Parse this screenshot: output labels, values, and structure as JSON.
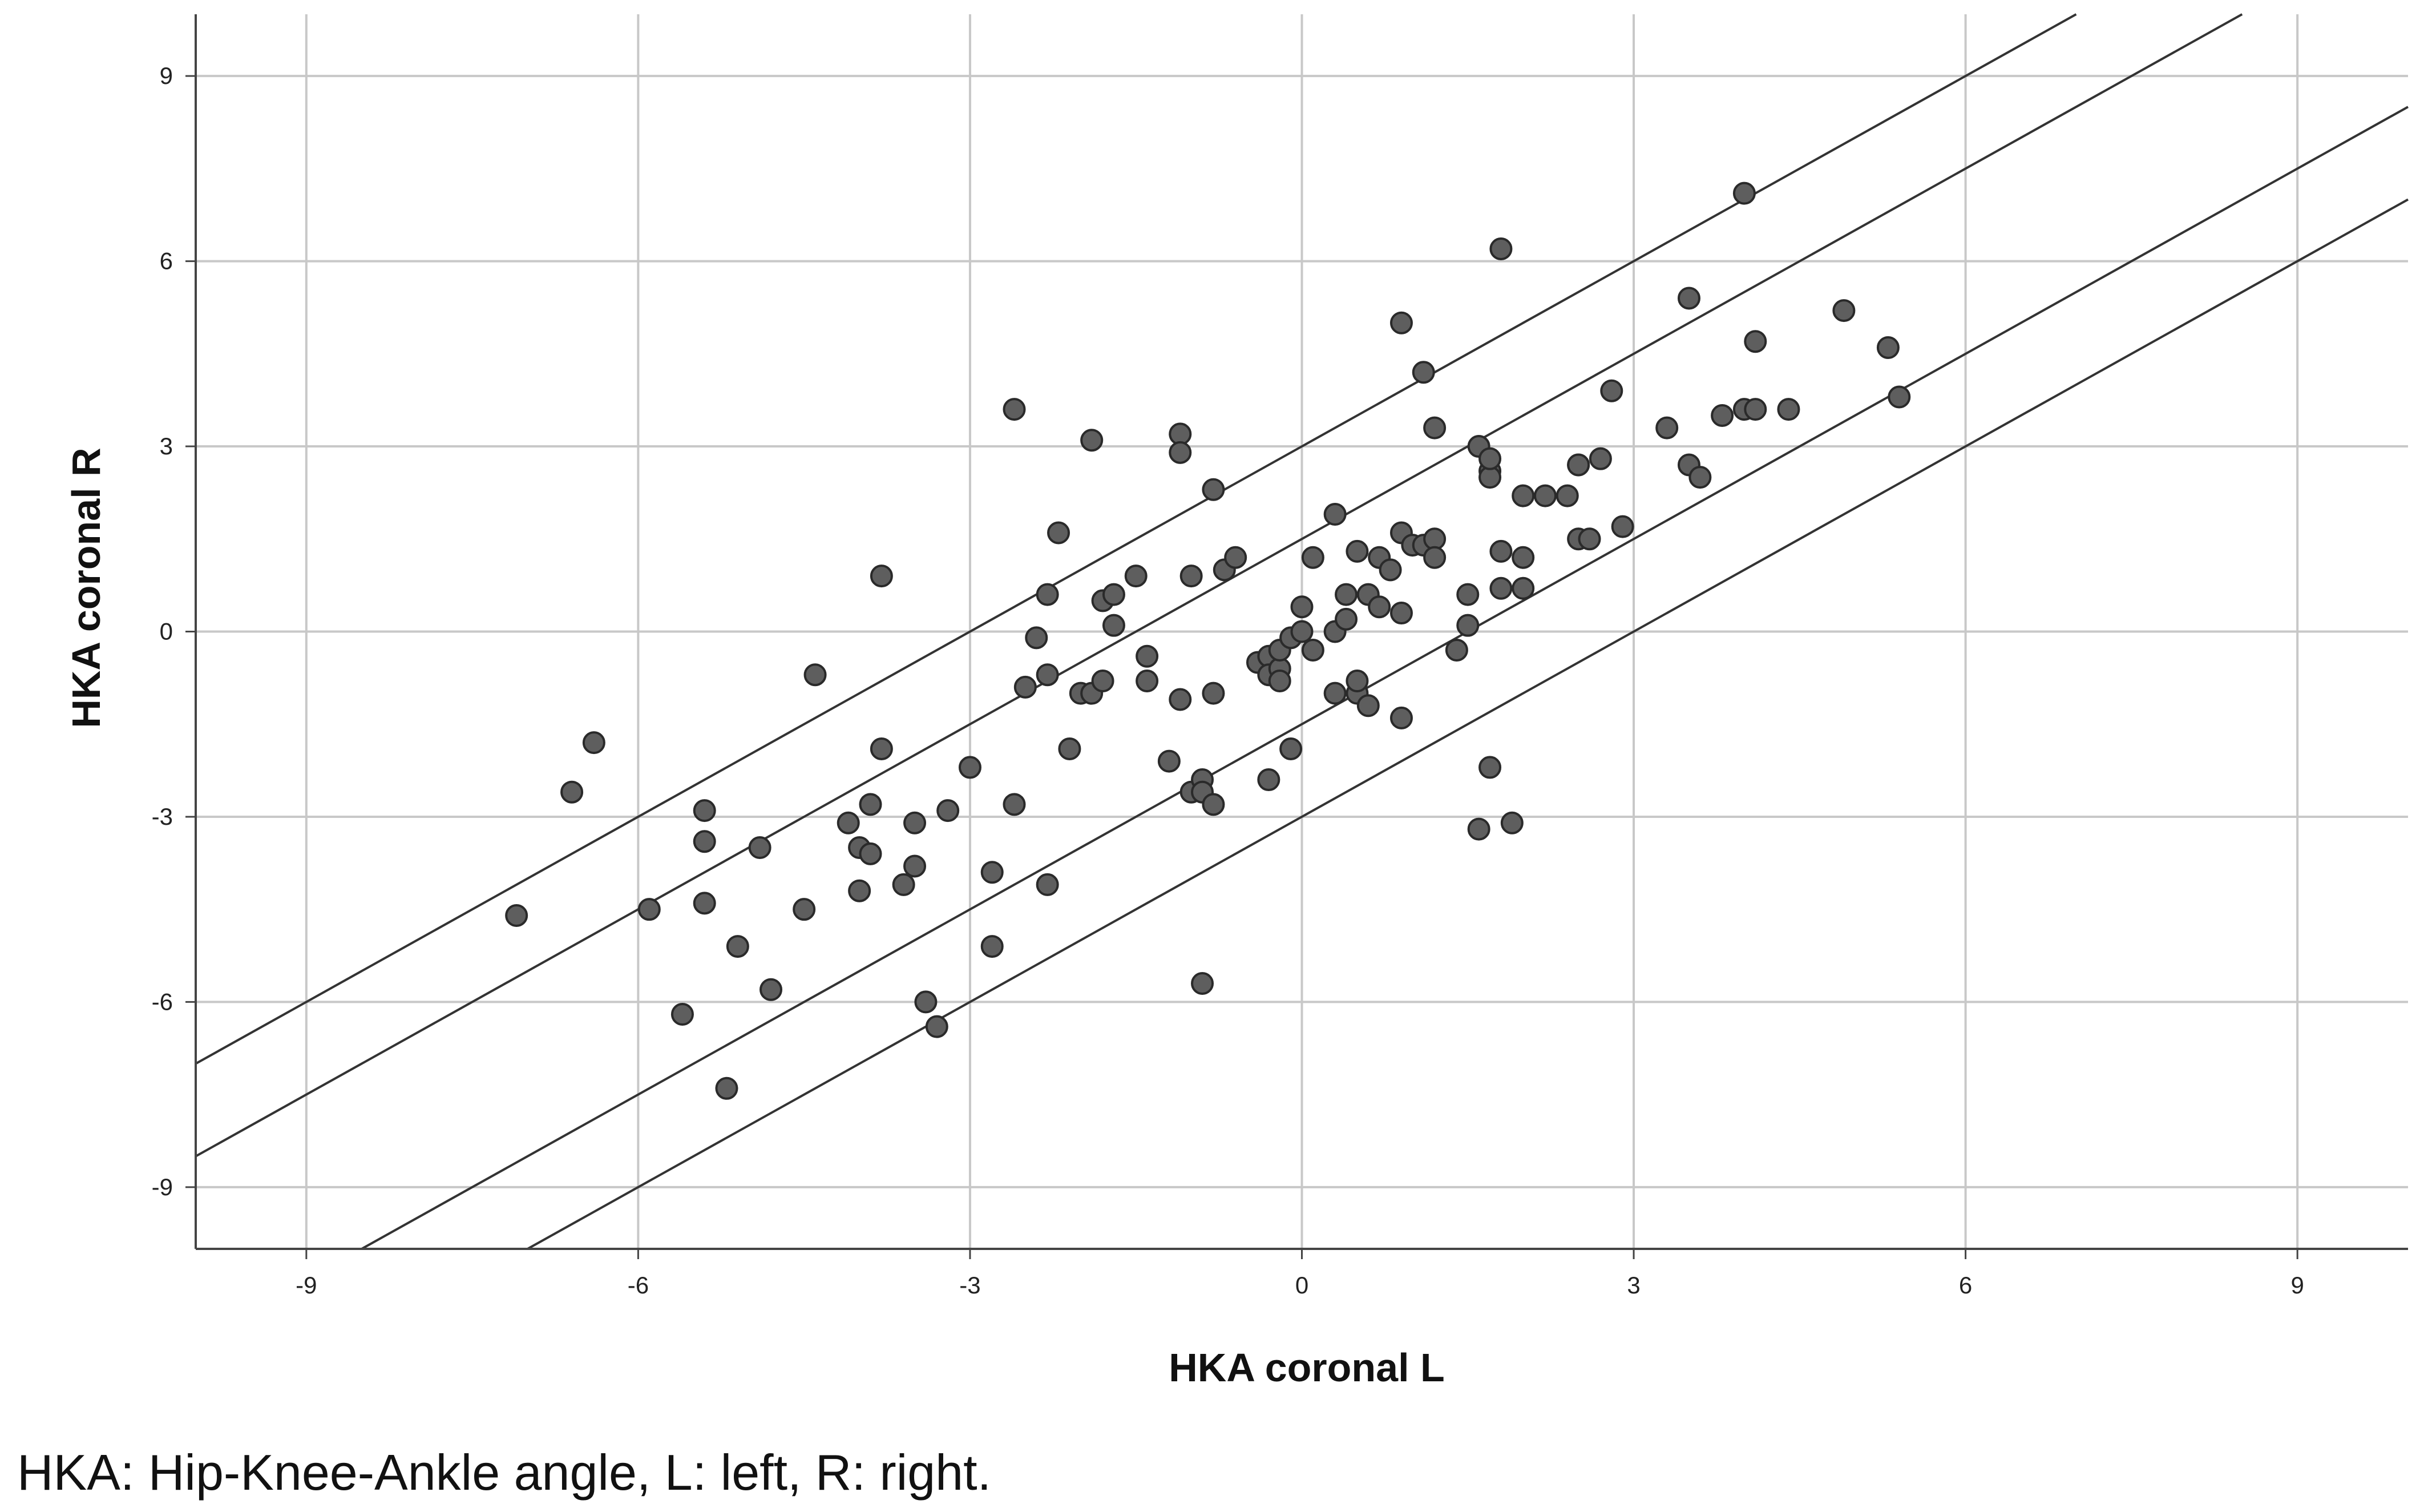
{
  "chart_data": {
    "type": "scatter",
    "xlabel": "HKA coronal L",
    "ylabel": "HKA coronal R",
    "caption": "HKA: Hip-Knee-Ankle angle, L: left, R: right.",
    "xlim": [
      -10,
      10
    ],
    "ylim": [
      -10,
      10
    ],
    "x_ticks": [
      -9,
      -6,
      -3,
      0,
      3,
      6,
      9
    ],
    "y_ticks": [
      -9,
      -6,
      -3,
      0,
      3,
      6,
      9
    ],
    "grid": true,
    "reference_lines": [
      {
        "slope": 1,
        "intercept": 3
      },
      {
        "slope": 1,
        "intercept": 1.5
      },
      {
        "slope": 1,
        "intercept": -1.5
      },
      {
        "slope": 1,
        "intercept": -3
      }
    ],
    "point_color": "#5e5e5e",
    "series": [
      {
        "points": [
          [
            -7.1,
            -4.6
          ],
          [
            -6.6,
            -2.6
          ],
          [
            -6.4,
            -1.8
          ],
          [
            -5.9,
            -4.5
          ],
          [
            -5.6,
            -6.2
          ],
          [
            -5.4,
            -2.9
          ],
          [
            -5.4,
            -3.4
          ],
          [
            -5.4,
            -4.4
          ],
          [
            -5.2,
            -7.4
          ],
          [
            -5.1,
            -5.1
          ],
          [
            -4.9,
            -3.5
          ],
          [
            -4.8,
            -5.8
          ],
          [
            -4.5,
            -4.5
          ],
          [
            -4.4,
            -0.7
          ],
          [
            -4.1,
            -3.1
          ],
          [
            -4.0,
            -3.5
          ],
          [
            -4.0,
            -4.2
          ],
          [
            -3.9,
            -2.8
          ],
          [
            -3.9,
            -3.6
          ],
          [
            -3.8,
            -1.9
          ],
          [
            -3.8,
            0.9
          ],
          [
            -3.6,
            -4.1
          ],
          [
            -3.5,
            -3.1
          ],
          [
            -3.5,
            -3.8
          ],
          [
            -3.4,
            -6.0
          ],
          [
            -3.3,
            -6.4
          ],
          [
            -3.2,
            -2.9
          ],
          [
            -3.0,
            -2.2
          ],
          [
            -2.8,
            -3.9
          ],
          [
            -2.8,
            -5.1
          ],
          [
            -2.6,
            3.6
          ],
          [
            -2.6,
            -2.8
          ],
          [
            -2.5,
            -0.9
          ],
          [
            -2.4,
            -0.1
          ],
          [
            -2.3,
            -0.7
          ],
          [
            -2.3,
            -4.1
          ],
          [
            -2.3,
            0.6
          ],
          [
            -2.2,
            1.6
          ],
          [
            -2.1,
            -1.9
          ],
          [
            -2.0,
            -1.0
          ],
          [
            -1.9,
            3.1
          ],
          [
            -1.9,
            -1.0
          ],
          [
            -1.8,
            -0.8
          ],
          [
            -1.8,
            0.5
          ],
          [
            -1.7,
            0.6
          ],
          [
            -1.7,
            0.1
          ],
          [
            -1.5,
            0.9
          ],
          [
            -1.4,
            -0.4
          ],
          [
            -1.4,
            -0.8
          ],
          [
            -1.2,
            -2.1
          ],
          [
            -1.1,
            -1.1
          ],
          [
            -1.1,
            3.2
          ],
          [
            -1.1,
            2.9
          ],
          [
            -1.0,
            0.9
          ],
          [
            -1.0,
            -2.6
          ],
          [
            -0.9,
            -2.4
          ],
          [
            -0.9,
            -2.6
          ],
          [
            -0.9,
            -5.7
          ],
          [
            -0.8,
            2.3
          ],
          [
            -0.8,
            -2.8
          ],
          [
            -0.8,
            -1.0
          ],
          [
            -0.7,
            1.0
          ],
          [
            -0.6,
            1.2
          ],
          [
            -0.4,
            -0.5
          ],
          [
            -0.3,
            -0.4
          ],
          [
            -0.3,
            -0.7
          ],
          [
            -0.3,
            -2.4
          ],
          [
            -0.2,
            -0.6
          ],
          [
            -0.2,
            -0.3
          ],
          [
            -0.2,
            -0.8
          ],
          [
            -0.1,
            -0.1
          ],
          [
            -0.1,
            -1.9
          ],
          [
            0.0,
            0.4
          ],
          [
            0.0,
            0.0
          ],
          [
            0.1,
            1.2
          ],
          [
            0.1,
            -0.3
          ],
          [
            0.3,
            1.9
          ],
          [
            0.3,
            0.0
          ],
          [
            0.3,
            -1.0
          ],
          [
            0.4,
            0.2
          ],
          [
            0.4,
            0.6
          ],
          [
            0.5,
            1.3
          ],
          [
            0.5,
            -1.0
          ],
          [
            0.5,
            -0.8
          ],
          [
            0.6,
            -1.2
          ],
          [
            0.6,
            0.6
          ],
          [
            0.7,
            1.2
          ],
          [
            0.7,
            0.4
          ],
          [
            0.8,
            1.0
          ],
          [
            0.9,
            0.3
          ],
          [
            0.9,
            1.6
          ],
          [
            0.9,
            5.0
          ],
          [
            0.9,
            -1.4
          ],
          [
            1.0,
            1.4
          ],
          [
            1.1,
            4.2
          ],
          [
            1.1,
            1.4
          ],
          [
            1.2,
            3.3
          ],
          [
            1.2,
            1.5
          ],
          [
            1.2,
            1.2
          ],
          [
            1.4,
            -0.3
          ],
          [
            1.5,
            0.1
          ],
          [
            1.5,
            0.6
          ],
          [
            1.6,
            3.0
          ],
          [
            1.6,
            -3.2
          ],
          [
            1.7,
            2.6
          ],
          [
            1.7,
            2.5
          ],
          [
            1.7,
            -2.2
          ],
          [
            1.7,
            2.8
          ],
          [
            1.8,
            0.7
          ],
          [
            1.8,
            6.2
          ],
          [
            1.8,
            1.3
          ],
          [
            1.9,
            -3.1
          ],
          [
            2.0,
            1.2
          ],
          [
            2.0,
            2.2
          ],
          [
            2.0,
            0.7
          ],
          [
            2.2,
            2.2
          ],
          [
            2.4,
            2.2
          ],
          [
            2.5,
            1.5
          ],
          [
            2.5,
            2.7
          ],
          [
            2.5,
            2.7
          ],
          [
            2.6,
            1.5
          ],
          [
            2.7,
            2.8
          ],
          [
            2.8,
            3.9
          ],
          [
            2.9,
            1.7
          ],
          [
            3.3,
            3.3
          ],
          [
            3.5,
            5.4
          ],
          [
            3.5,
            2.7
          ],
          [
            3.6,
            2.5
          ],
          [
            3.8,
            3.5
          ],
          [
            4.0,
            7.1
          ],
          [
            4.0,
            3.6
          ],
          [
            4.1,
            4.7
          ],
          [
            4.1,
            3.6
          ],
          [
            4.4,
            3.6
          ],
          [
            4.9,
            5.2
          ],
          [
            5.3,
            4.6
          ],
          [
            5.4,
            3.8
          ]
        ]
      }
    ]
  }
}
